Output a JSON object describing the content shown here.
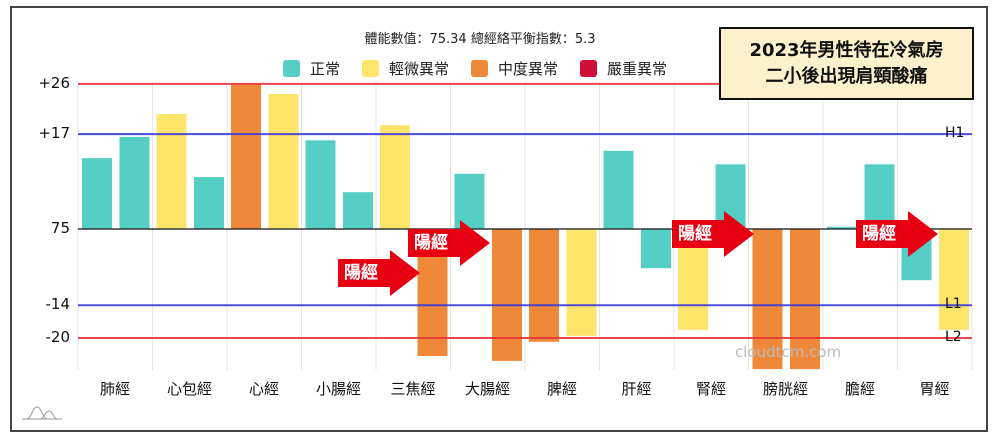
{
  "chart_data": {
    "type": "bar",
    "subtitle": "體能數值：75.34 總經絡平衡指數：5.3",
    "title": "2023年男性待在冷氣房\n二小後出現肩頸酸痛",
    "title_lines": [
      "2023年男性待在冷氣房",
      "二小後出現肩頸酸痛"
    ],
    "categories": [
      "肺經",
      "心包經",
      "心經",
      "小腸經",
      "三焦經",
      "大腸經",
      "脾經",
      "肝經",
      "腎經",
      "膀胱經",
      "膽經",
      "胃經"
    ],
    "bars": [
      [
        {
          "value": 12.7,
          "level": "正常"
        },
        {
          "value": 16.5,
          "level": "正常"
        }
      ],
      [
        {
          "value": 20.6,
          "level": "輕微異常"
        },
        {
          "value": 9.3,
          "level": "正常"
        }
      ],
      [
        {
          "value": 26,
          "level": "中度異常"
        },
        {
          "value": 24.2,
          "level": "輕微異常"
        }
      ],
      [
        {
          "value": 15.9,
          "level": "正常"
        },
        {
          "value": 6.6,
          "level": "正常"
        }
      ],
      [
        {
          "value": 18.6,
          "level": "輕微異常"
        },
        {
          "value": -23.3,
          "level": "中度異常"
        }
      ],
      [
        {
          "value": 9.9,
          "level": "正常"
        },
        {
          "value": -24.2,
          "level": "中度異常"
        }
      ],
      [
        {
          "value": -20.7,
          "level": "中度異常"
        },
        {
          "value": -19.6,
          "level": "輕微異常"
        }
      ],
      [
        {
          "value": 14,
          "level": "正常"
        },
        {
          "value": -7.2,
          "level": "正常"
        }
      ],
      [
        {
          "value": -18.5,
          "level": "輕微異常"
        },
        {
          "value": 11.6,
          "level": "正常"
        }
      ],
      [
        {
          "value": -25.7,
          "level": "中度異常"
        },
        {
          "value": -25.7,
          "level": "中度異常"
        }
      ],
      [
        {
          "value": 0.4,
          "level": "正常"
        },
        {
          "value": 11.6,
          "level": "正常"
        }
      ],
      [
        {
          "value": -9.4,
          "level": "正常"
        },
        {
          "value": -18.5,
          "level": "輕微異常"
        }
      ]
    ],
    "legend": [
      {
        "name": "正常",
        "color": "#55cfc6"
      },
      {
        "name": "輕微異常",
        "color": "#fde46a"
      },
      {
        "name": "中度異常",
        "color": "#f0883a"
      },
      {
        "name": "嚴重異常",
        "color": "#d0103a"
      }
    ],
    "legend_position": "top",
    "yticks": [
      {
        "label": "+26",
        "value": 26
      },
      {
        "label": "+17",
        "value": 17
      },
      {
        "label": "75",
        "value": 0
      },
      {
        "label": "-14",
        "value": -14
      },
      {
        "label": "-20",
        "value": -20
      }
    ],
    "reference_lines": [
      {
        "value": 26,
        "color": "#e8343a",
        "label": ""
      },
      {
        "value": 17,
        "color": "#3a3ad8",
        "label": "H1"
      },
      {
        "value": 0,
        "color": "#222222",
        "label": ""
      },
      {
        "value": -14,
        "color": "#3a3ad8",
        "label": "L1"
      },
      {
        "value": -20,
        "color": "#e8343a",
        "label": "L2"
      }
    ],
    "annotations": [
      {
        "text": "陽經",
        "category": "三焦經"
      },
      {
        "text": "陽經",
        "category": "大腸經"
      },
      {
        "text": "陽經",
        "category": "膀胱經"
      },
      {
        "text": "陽經",
        "category": "胃經"
      }
    ],
    "grid": true
  },
  "watermark": "cloudtcm.com"
}
